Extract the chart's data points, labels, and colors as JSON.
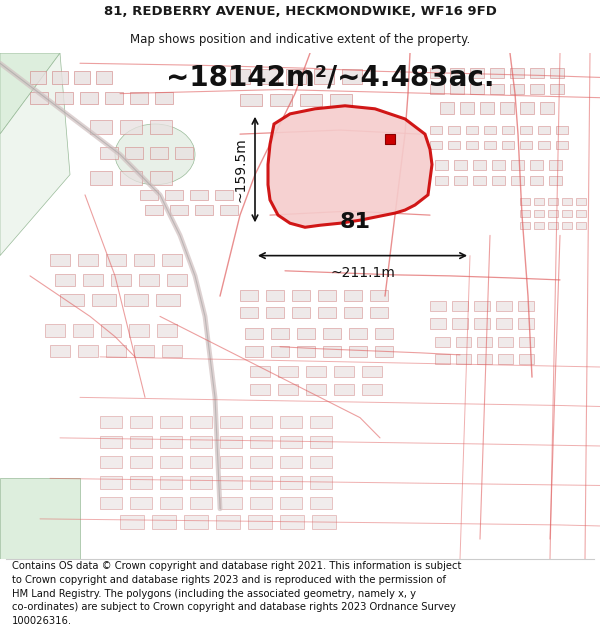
{
  "title": "81, REDBERRY AVENUE, HECKMONDWIKE, WF16 9FD",
  "subtitle": "Map shows position and indicative extent of the property.",
  "area_text": "~18142m²/~4.483ac.",
  "label_81": "81",
  "dim_horizontal": "~211.1m",
  "dim_vertical": "~159.5m",
  "footer": "Contains OS data © Crown copyright and database right 2021. This information is subject\nto Crown copyright and database rights 2023 and is reproduced with the permission of\nHM Land Registry. The polygons (including the associated geometry, namely x, y\nco-ordinates) are subject to Crown copyright and database rights 2023 Ordnance Survey\n100026316.",
  "map_bg": "#f7f2f2",
  "polygon_edge": "#cc0000",
  "polygon_fill": "#f5cccc",
  "road_color": "#e06060",
  "building_fill": "#e8e0e0",
  "building_edge": "#d08080",
  "green_fill": "#ddeedd",
  "green_edge": "#99bb99",
  "title_fontsize": 9.5,
  "subtitle_fontsize": 8.5,
  "area_fontsize": 20,
  "label_fontsize": 16,
  "dim_fontsize": 10,
  "footer_fontsize": 7.2
}
